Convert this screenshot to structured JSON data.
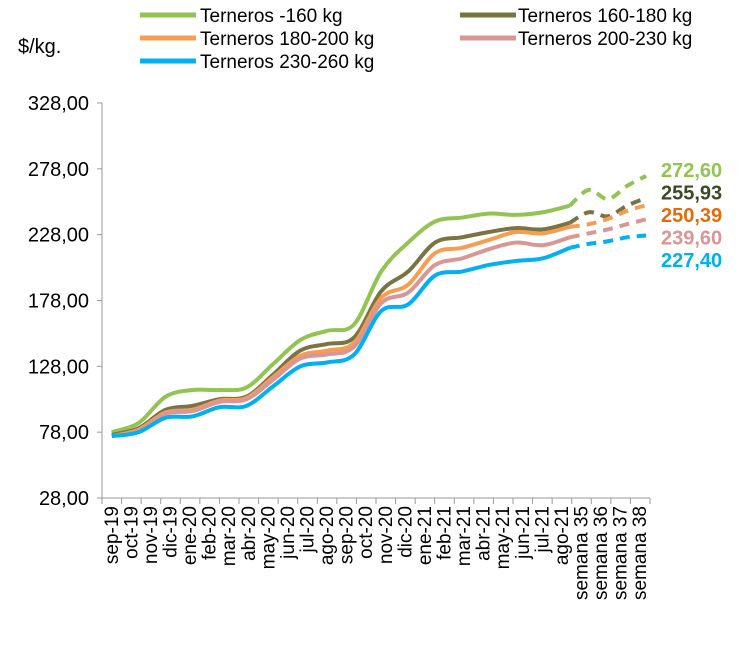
{
  "chart_data": {
    "type": "line",
    "ylabel": "$/kg.",
    "ylim": [
      28,
      328
    ],
    "yticks": [
      "28,00",
      "78,00",
      "128,00",
      "178,00",
      "228,00",
      "278,00",
      "328,00"
    ],
    "ytick_values": [
      28,
      78,
      128,
      178,
      228,
      278,
      328
    ],
    "categories": [
      "sep-19",
      "oct-19",
      "nov-19",
      "dic-19",
      "ene-20",
      "feb-20",
      "mar-20",
      "abr-20",
      "may-20",
      "jun-20",
      "jul-20",
      "ago-20",
      "sep-20",
      "oct-20",
      "nov-20",
      "dic-20",
      "ene-21",
      "feb-21",
      "mar-21",
      "abr-21",
      "may-21",
      "jun-21",
      "jul-21",
      "ago-21",
      "semana 35",
      "semana 36",
      "semana 37",
      "semana 38"
    ],
    "legend_position": "top",
    "grid": false,
    "series": [
      {
        "name": "Terneros -160 kg",
        "color": "#92c353",
        "label_color": "#92c353",
        "end_label": "272,60",
        "solid": [
          78,
          85,
          105,
          110,
          110,
          112,
          130,
          148,
          155,
          160,
          200,
          222,
          238,
          241,
          244,
          243,
          245,
          250
        ],
        "dashed": [
          250,
          262,
          255,
          265,
          272.6
        ]
      },
      {
        "name": "Terneros 160-180 kg",
        "color": "#7b7343",
        "label_color": "#3a4a25",
        "end_label": "255,93",
        "solid": [
          76,
          81,
          95,
          98,
          103,
          105,
          122,
          140,
          145,
          150,
          185,
          200,
          222,
          226,
          230,
          233,
          232,
          237
        ],
        "dashed": [
          237,
          245,
          242,
          250,
          255.93
        ]
      },
      {
        "name": "Terneros 180-200 kg",
        "color": "#f59d51",
        "label_color": "#e36c0a",
        "end_label": "250,39",
        "solid": [
          75,
          80,
          93,
          95,
          102,
          104,
          120,
          136,
          140,
          146,
          180,
          190,
          214,
          218,
          224,
          230,
          229,
          234
        ],
        "dashed": [
          234,
          236,
          240,
          246,
          250.39
        ]
      },
      {
        "name": "Terneros 200-230 kg",
        "color": "#d99694",
        "label_color": "#d99694",
        "end_label": "239,60",
        "solid": [
          75,
          79,
          92,
          94,
          101,
          103,
          118,
          134,
          137,
          143,
          176,
          184,
          205,
          210,
          217,
          222,
          220,
          226
        ],
        "dashed": [
          226,
          229,
          232,
          236,
          239.6
        ]
      },
      {
        "name": "Terneros 230-260 kg",
        "color": "#00b0f0",
        "label_color": "#00b0f0",
        "end_label": "227,40",
        "solid": [
          75,
          78,
          89,
          90,
          97,
          98,
          113,
          128,
          131,
          137,
          170,
          175,
          197,
          200,
          205,
          208,
          210,
          218
        ],
        "dashed": [
          218,
          221,
          223,
          226,
          227.4
        ]
      }
    ]
  }
}
